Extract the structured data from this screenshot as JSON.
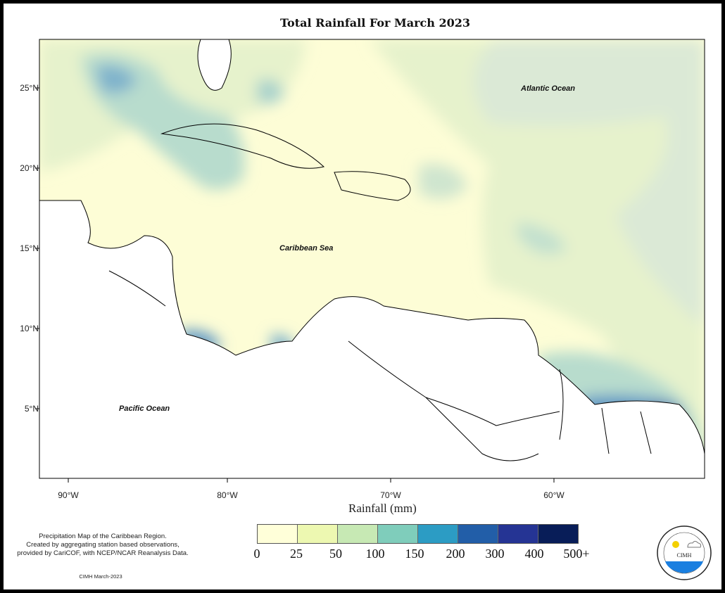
{
  "title": "Total Rainfall For March 2023",
  "map": {
    "lat_labels": [
      "25°N",
      "20°N",
      "15°N",
      "10°N",
      "5°N"
    ],
    "lon_labels": [
      "90°W",
      "80°W",
      "70°W",
      "60°W"
    ],
    "ocean_labels": {
      "atlantic": "Atlantic Ocean",
      "caribbean": "Caribbean Sea",
      "pacific": "Pacific Ocean"
    }
  },
  "legend": {
    "title": "Rainfall (mm)",
    "ticks": [
      "0",
      "25",
      "50",
      "100",
      "150",
      "200",
      "300",
      "400",
      "500+"
    ],
    "colors": [
      "#ffffd9",
      "#edf8b1",
      "#c7e9b4",
      "#7fcdbb",
      "#2c9cc4",
      "#225ea8",
      "#253494",
      "#081d58"
    ]
  },
  "note": [
    "Precipitation Map of the Caribbean Region.",
    "Created by aggregating station based observations,",
    "provided by CariCOF, with NCEP/NCAR Reanalysis Data."
  ],
  "credit": "CIMH March-2023",
  "logo": {
    "text": "CIMH",
    "ring": "Caribbean Institute for Meteorology and Hydrology"
  }
}
